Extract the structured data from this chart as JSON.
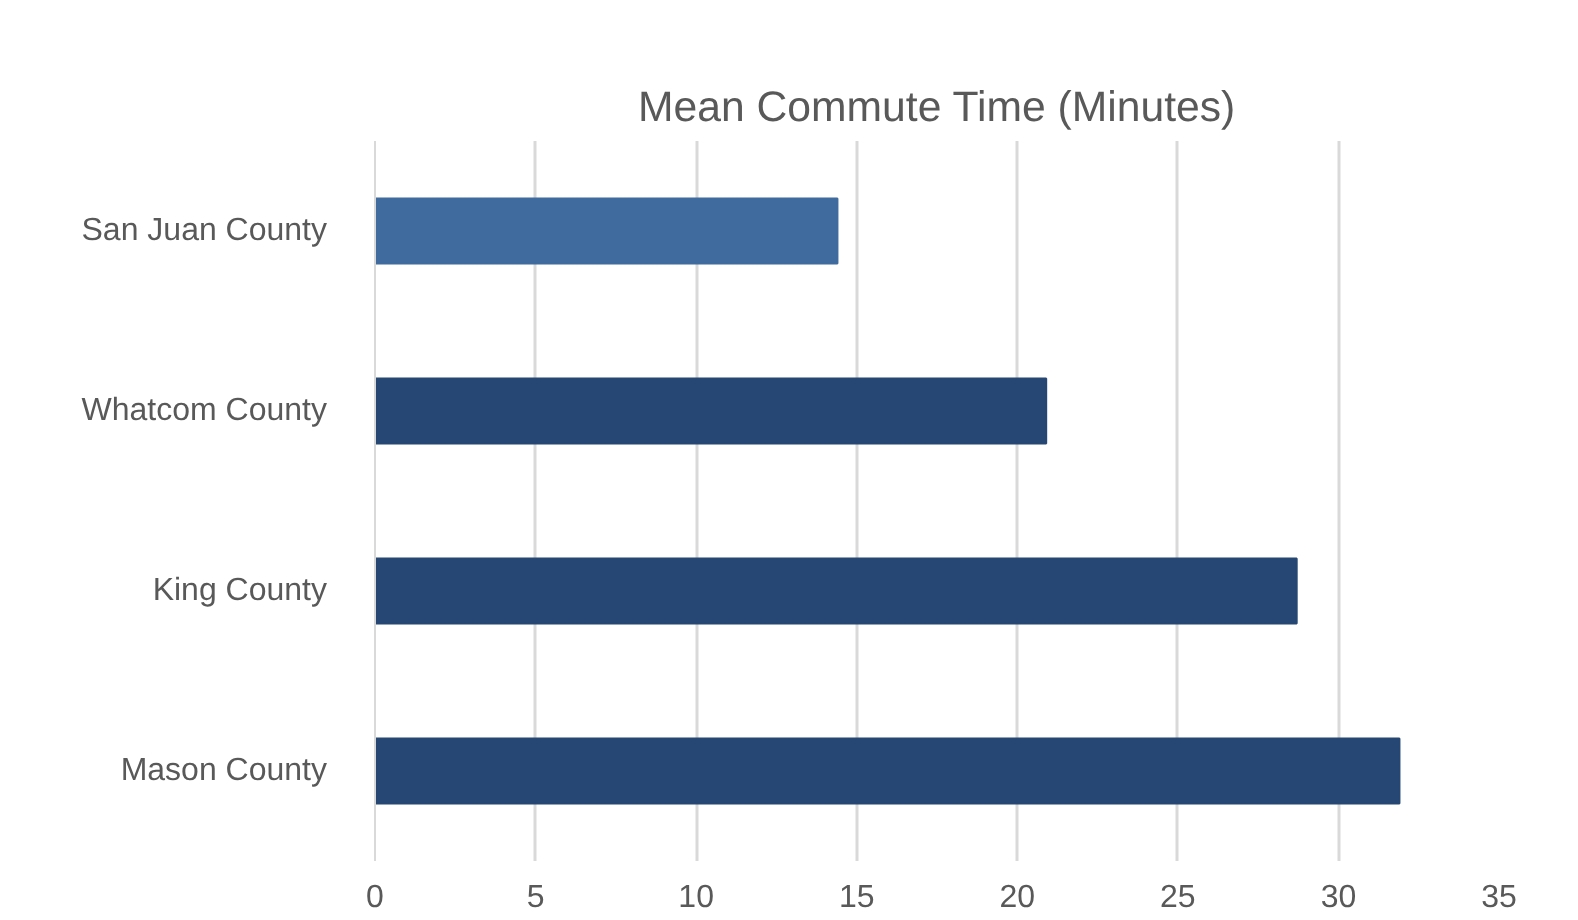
{
  "chart_data": {
    "type": "bar",
    "orientation": "horizontal",
    "title": "Mean Commute Time (Minutes)",
    "categories": [
      "San Juan County",
      "Whatcom County",
      "King County",
      "Mason County"
    ],
    "values": [
      14.4,
      20.9,
      28.7,
      31.9
    ],
    "colors": [
      "#3f6b9e",
      "#264673",
      "#264673",
      "#264673"
    ],
    "xlim": [
      0,
      35
    ],
    "xticks": [
      0,
      5,
      10,
      15,
      20,
      25,
      30,
      35
    ],
    "grid": "x"
  }
}
